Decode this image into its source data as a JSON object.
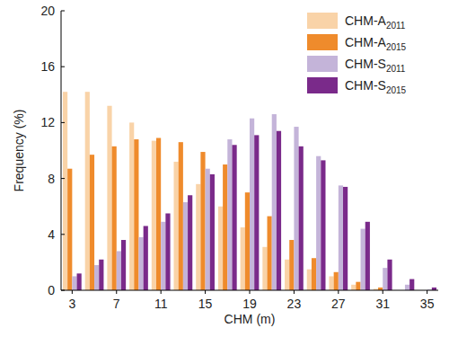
{
  "chart_data": {
    "type": "bar",
    "x_label": "CHM (m)",
    "y_label": "Frequency (%)",
    "categories": [
      "3",
      null,
      "7",
      null,
      "11",
      null,
      "15",
      null,
      "19",
      null,
      "23",
      null,
      "27",
      null,
      "31",
      null,
      "35"
    ],
    "series": [
      {
        "name": "CHM-A2011",
        "color": "#f9d3a8",
        "values": [
          14.2,
          14.2,
          13.2,
          12.0,
          10.7,
          9.2,
          7.6,
          6.0,
          4.5,
          3.1,
          2.2,
          1.5,
          1.0,
          0.4,
          0.1,
          0,
          0
        ]
      },
      {
        "name": "CHM-A2015",
        "color": "#ef8b2c",
        "values": [
          8.7,
          9.7,
          10.3,
          10.8,
          10.9,
          10.6,
          9.9,
          9.0,
          7.0,
          5.3,
          3.6,
          2.3,
          1.3,
          0.6,
          0.2,
          0,
          0
        ]
      },
      {
        "name": "CHM-S2011",
        "color": "#c4b4d9",
        "values": [
          1.0,
          1.8,
          2.8,
          3.8,
          4.9,
          6.3,
          8.7,
          10.8,
          12.3,
          12.6,
          11.7,
          9.6,
          7.5,
          4.4,
          1.6,
          0.4,
          0.05
        ]
      },
      {
        "name": "CHM-S2015",
        "color": "#7a2a8a",
        "values": [
          1.2,
          2.2,
          3.6,
          4.6,
          5.5,
          6.8,
          8.3,
          10.4,
          11.1,
          11.4,
          10.3,
          9.3,
          7.4,
          4.9,
          2.2,
          0.8,
          0.2
        ]
      }
    ],
    "ylim": [
      0,
      20
    ],
    "yticks": [
      0,
      4,
      8,
      12,
      16,
      20
    ],
    "grid": false,
    "legend": "upper right"
  }
}
